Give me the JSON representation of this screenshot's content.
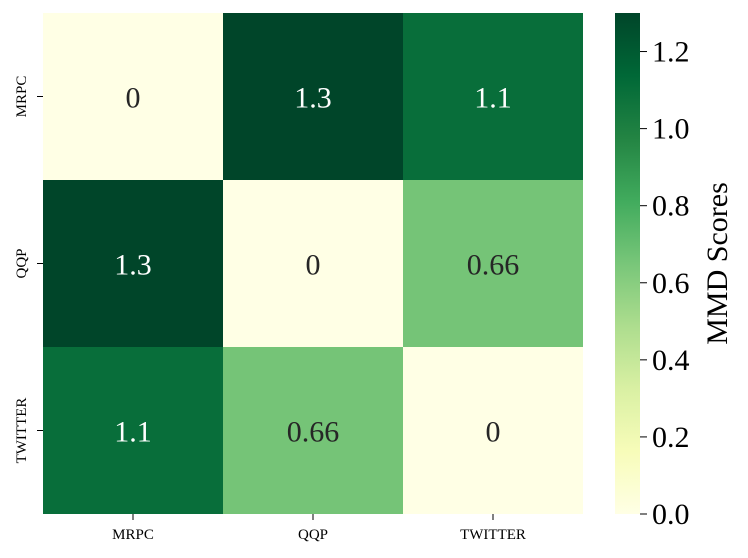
{
  "chart_data": {
    "type": "heatmap",
    "x_categories": [
      "MRPC",
      "QQP",
      "TWITTER"
    ],
    "y_categories": [
      "MRPC",
      "QQP",
      "TWITTER"
    ],
    "values": [
      [
        0,
        1.3,
        1.1
      ],
      [
        1.3,
        0,
        0.66
      ],
      [
        1.1,
        0.66,
        0
      ]
    ],
    "cell_labels": [
      [
        "0",
        "1.3",
        "1.1"
      ],
      [
        "1.3",
        "0",
        "0.66"
      ],
      [
        "1.1",
        "0.66",
        "0"
      ]
    ],
    "colorbar": {
      "label": "MMD Scores",
      "range": [
        0,
        1.3
      ],
      "ticks": [
        0.0,
        0.2,
        0.4,
        0.6,
        0.8,
        1.0,
        1.2
      ],
      "tick_labels": [
        "0.0",
        "0.2",
        "0.4",
        "0.6",
        "0.8",
        "1.0",
        "1.2"
      ]
    },
    "colormap": "YlGn",
    "colormap_stops": [
      "#ffffe5",
      "#f7fcb9",
      "#d9f0a3",
      "#addd8e",
      "#78c679",
      "#41ab5d",
      "#238443",
      "#006837",
      "#004529"
    ]
  }
}
